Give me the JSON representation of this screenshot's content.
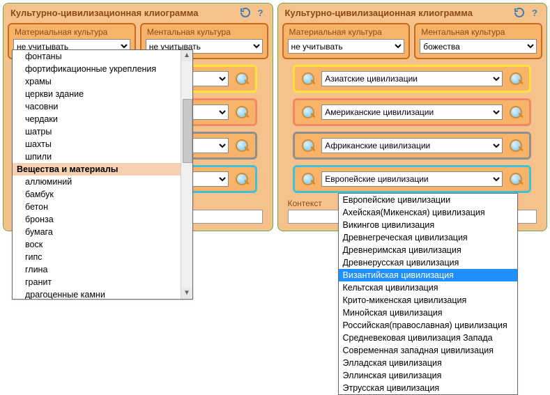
{
  "colors": {
    "panel_border": "#6ba84f",
    "panel_bg": "#f6c28b",
    "box_bg": "#f7b36a",
    "text_header": "#8a4a1a",
    "civ_border_yellow": "#ffe23a",
    "civ_border_salmon": "#f28965",
    "civ_border_gray": "#8f8f8f",
    "civ_border_cyan": "#3cc3d9",
    "dropdown_group_bg": "#f6d0b0",
    "dropdown_selected_bg": "#1e90ff"
  },
  "panel_title": "Культурно-цивилизационная клиограмма",
  "material_label": "Материальная культура",
  "mental_label": "Ментальная культура",
  "context_label": "Контекст",
  "context_value": "",
  "left": {
    "material_value": "не учитывать",
    "mental_value": "не учитывать"
  },
  "right": {
    "material_value": "не учитывать",
    "mental_value": "божества"
  },
  "civ": {
    "asia": "Азиатские цивилизации",
    "america": "Американские цивилизации",
    "africa": "Африканские цивилизации",
    "europe": "Европейские цивилизации"
  },
  "dd_left": {
    "items": [
      {
        "label": "фонтаны",
        "indent": true
      },
      {
        "label": "фортификационные укрепления",
        "indent": true
      },
      {
        "label": "храмы",
        "indent": true
      },
      {
        "label": "церкви здание",
        "indent": true
      },
      {
        "label": "часовни",
        "indent": true
      },
      {
        "label": "чердаки",
        "indent": true
      },
      {
        "label": "шатры",
        "indent": true
      },
      {
        "label": "шахты",
        "indent": true
      },
      {
        "label": "шпили",
        "indent": true
      },
      {
        "label": "Вещества и материалы",
        "group": true
      },
      {
        "label": "аллюминий",
        "indent": true
      },
      {
        "label": "бамбук",
        "indent": true
      },
      {
        "label": "бетон",
        "indent": true
      },
      {
        "label": "бронза",
        "indent": true
      },
      {
        "label": "бумага",
        "indent": true
      },
      {
        "label": "воск",
        "indent": true
      },
      {
        "label": "гипс",
        "indent": true
      },
      {
        "label": "глина",
        "indent": true
      },
      {
        "label": "гранит",
        "indent": true
      },
      {
        "label": "драгоценные камни",
        "indent": true
      }
    ]
  },
  "dd_right": {
    "items": [
      {
        "label": "Европейские цивилизации"
      },
      {
        "label": "Ахейская(Микенская) цивилизация"
      },
      {
        "label": "Викингов цивилизация"
      },
      {
        "label": "Древнегреческая цивилизация"
      },
      {
        "label": "Древнеримская цивилизация"
      },
      {
        "label": "Древнерусская цивилизация"
      },
      {
        "label": "Византийская цивилизация",
        "selected": true
      },
      {
        "label": "Кельтская цивилизация"
      },
      {
        "label": "Крито-микенская цивилизация"
      },
      {
        "label": "Минойская цивилизация"
      },
      {
        "label": "Российская(православная) цивилизация"
      },
      {
        "label": "Средневековая цивилизация Запада"
      },
      {
        "label": "Современная западная цивилизация"
      },
      {
        "label": "Элладская цивилизация"
      },
      {
        "label": "Эллинская цивилизация"
      },
      {
        "label": "Этрусская цивилизация"
      }
    ]
  }
}
